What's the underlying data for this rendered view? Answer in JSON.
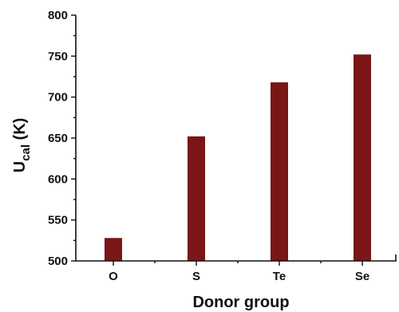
{
  "chart_data": {
    "type": "bar",
    "categories": [
      "O",
      "S",
      "Te",
      "Se"
    ],
    "values": [
      528,
      652,
      718,
      752
    ],
    "xlabel": "Donor group",
    "ylabel_main": "U",
    "ylabel_sub": "cal",
    "ylabel_unit": " (K)",
    "ylim": [
      500,
      800
    ],
    "yticks": [
      "500",
      "550",
      "600",
      "650",
      "700",
      "750",
      "800"
    ],
    "bar_color": "#7a1616",
    "grid": false,
    "legend": "none"
  }
}
